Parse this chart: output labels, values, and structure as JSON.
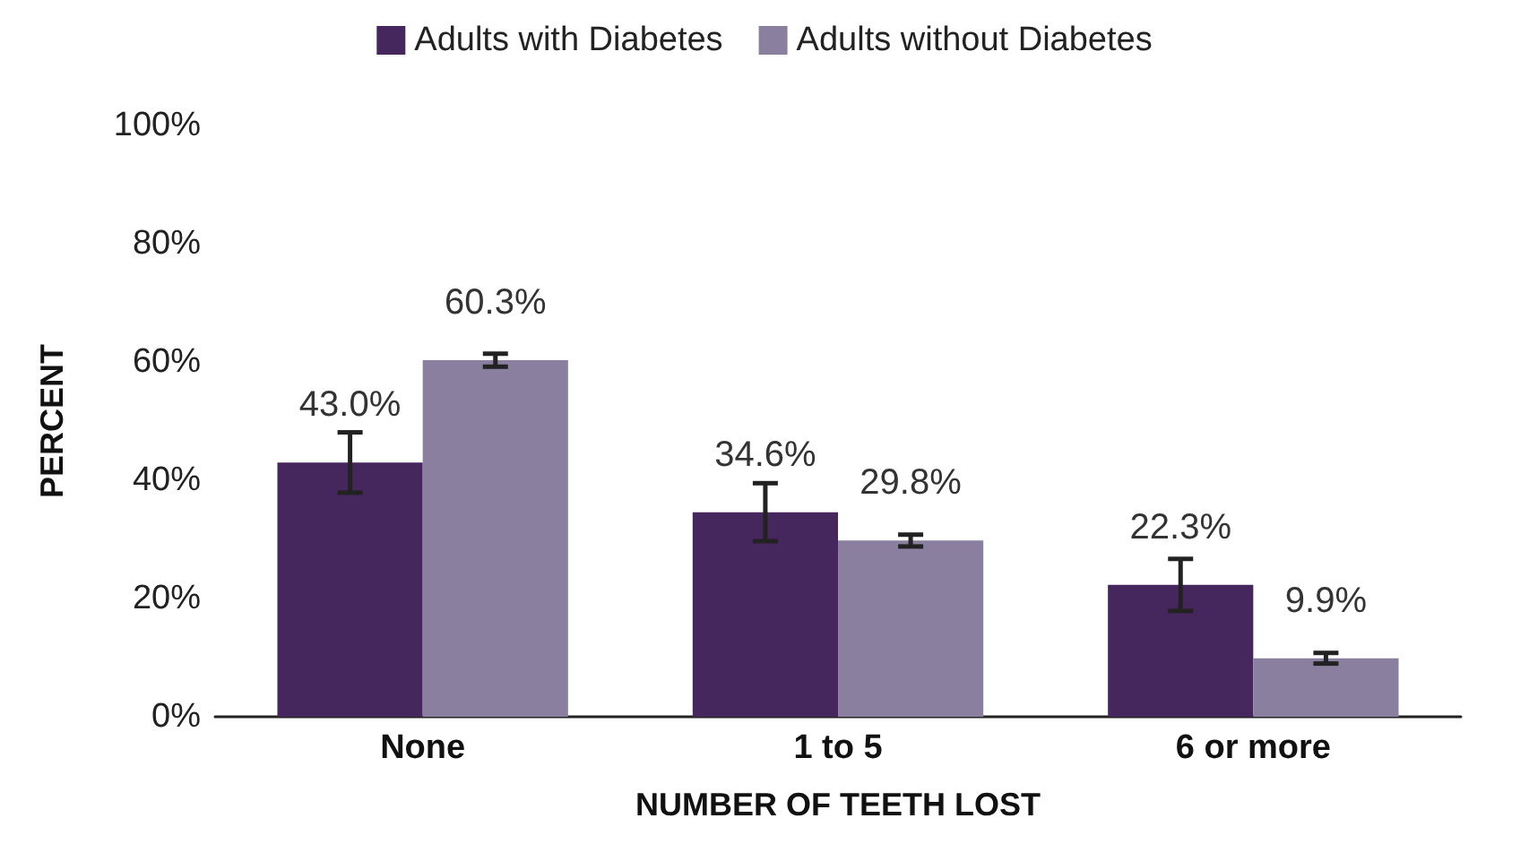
{
  "chart_data": {
    "type": "bar",
    "xlabel": "NUMBER OF TEETH LOST",
    "ylabel": "PERCENT",
    "categories": [
      "None",
      "1 to 5",
      "6 or more"
    ],
    "series": [
      {
        "name": "Adults with Diabetes",
        "color": "#45275e",
        "values": [
          43.0,
          34.6,
          22.3
        ],
        "value_labels": [
          "43.0%",
          "34.6%",
          "22.3%"
        ],
        "errors": [
          5.1,
          4.9,
          4.4
        ]
      },
      {
        "name": "Adults without Diabetes",
        "color": "#8a7f9e",
        "values": [
          60.3,
          29.8,
          9.9
        ],
        "value_labels": [
          "60.3%",
          "29.8%",
          "9.9%"
        ],
        "errors": [
          1.1,
          1.0,
          0.9
        ]
      }
    ],
    "ylim": [
      0,
      100
    ],
    "yticks": [
      {
        "value": 0,
        "label": "0%"
      },
      {
        "value": 20,
        "label": "20%"
      },
      {
        "value": 40,
        "label": "40%"
      },
      {
        "value": 60,
        "label": "60%"
      },
      {
        "value": 80,
        "label": "80%"
      },
      {
        "value": 100,
        "label": "100%"
      }
    ],
    "grid": false,
    "legend": "top"
  }
}
